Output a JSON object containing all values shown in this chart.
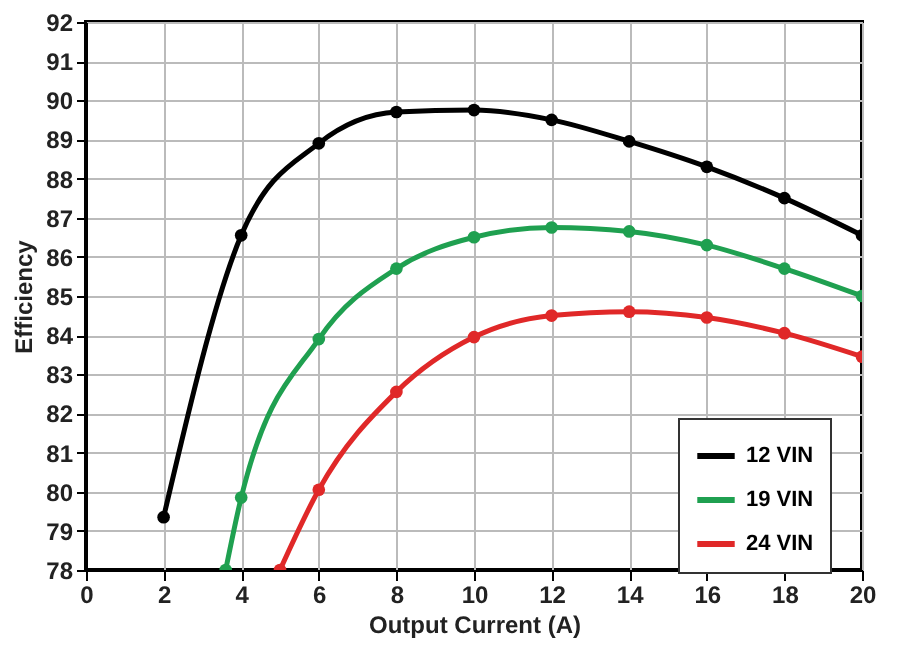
{
  "chart_data": {
    "type": "line",
    "xlabel": "Output Current (A)",
    "ylabel": "Efficiency",
    "xlim": [
      0,
      20
    ],
    "xticks": [
      0,
      2,
      4,
      6,
      8,
      10,
      12,
      14,
      16,
      18,
      20
    ],
    "ylim": [
      78,
      92
    ],
    "yticks": [
      78,
      79,
      80,
      81,
      82,
      83,
      84,
      85,
      86,
      87,
      88,
      89,
      90,
      91,
      92
    ],
    "grid": true,
    "legend": "bottom right",
    "marker": "circle",
    "line_style": "solid",
    "series": [
      {
        "name": "12 VIN",
        "color": "#000000",
        "x": [
          2,
          4,
          6,
          8,
          10,
          12,
          14,
          16,
          18,
          20
        ],
        "values": [
          79.35,
          86.55,
          88.9,
          89.7,
          89.75,
          89.5,
          88.95,
          88.3,
          87.5,
          86.55
        ]
      },
      {
        "name": "19 VIN",
        "color": "#1fa050",
        "x": [
          3.6,
          4,
          6,
          8,
          10,
          12,
          14,
          16,
          18,
          20
        ],
        "values": [
          78,
          79.85,
          83.9,
          85.7,
          86.5,
          86.75,
          86.65,
          86.3,
          85.7,
          85.0
        ]
      },
      {
        "name": "24 VIN",
        "color": "#e02828",
        "x": [
          5,
          6,
          8,
          10,
          12,
          14,
          16,
          18,
          20
        ],
        "values": [
          78,
          80.05,
          82.55,
          83.95,
          84.5,
          84.6,
          84.45,
          84.05,
          83.45
        ]
      }
    ]
  }
}
